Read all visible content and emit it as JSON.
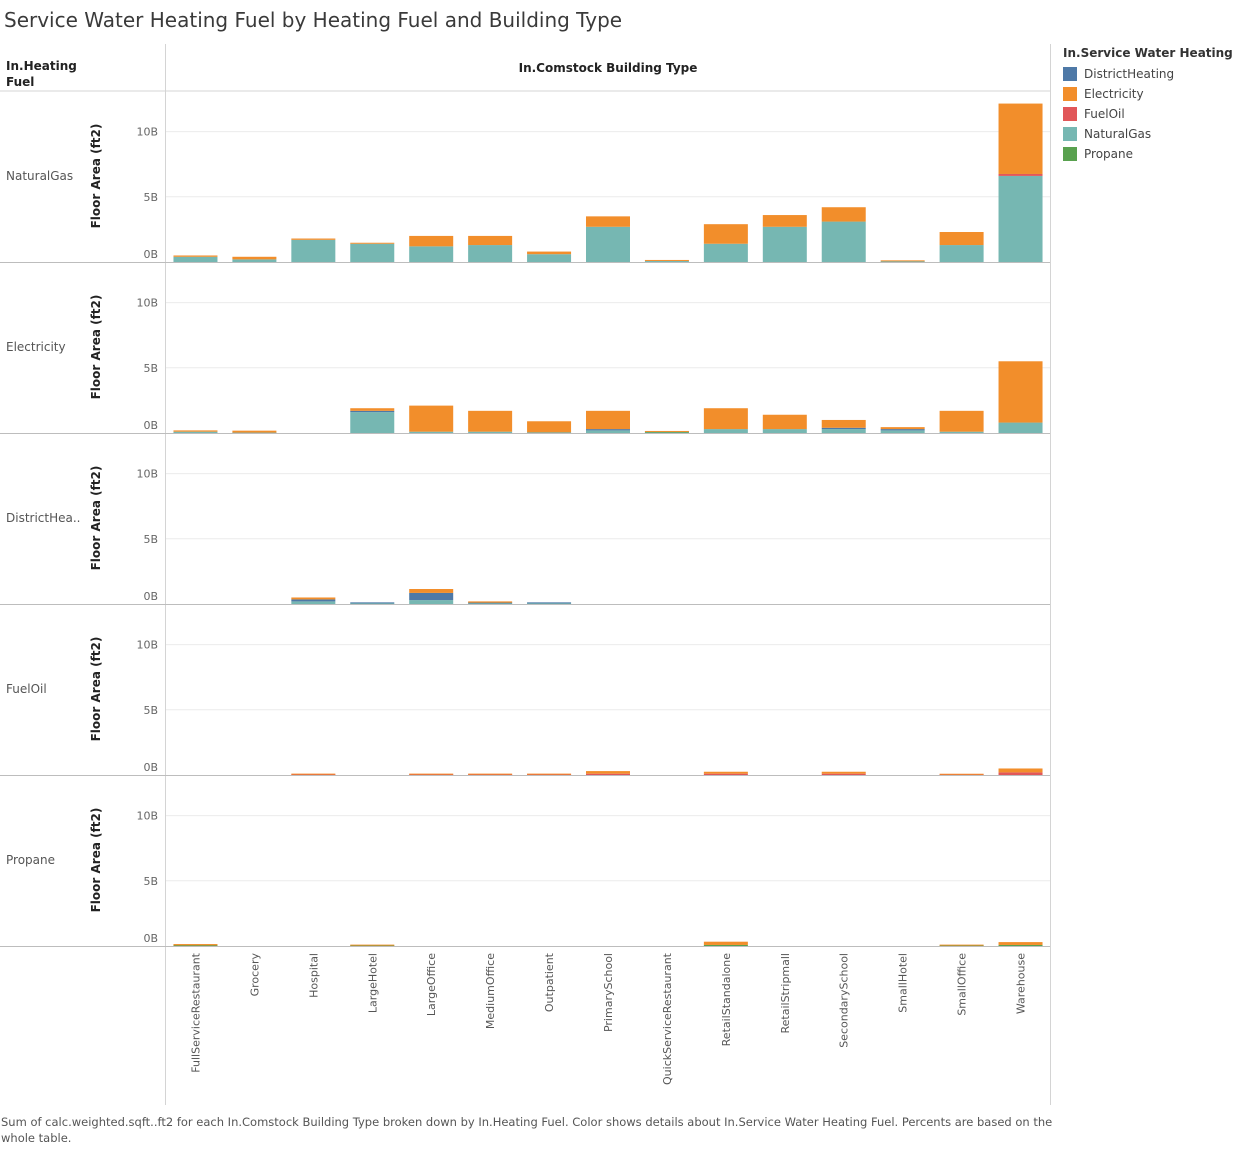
{
  "title": "Service Water Heating Fuel by Heating Fuel and Building Type",
  "row_header": [
    "In.Heating",
    "Fuel"
  ],
  "col_header": "In.Comstock Building Type",
  "caption": "Sum of calc.weighted.sqft..ft2 for each In.Comstock Building Type broken down by In.Heating Fuel.  Color shows details about In.Service Water Heating Fuel. Percents are based on the whole table.",
  "legend": {
    "title": "In.Service Water Heating Fuel",
    "items": [
      {
        "name": "DistrictHeating",
        "color": "#4e79a7"
      },
      {
        "name": "Electricity",
        "color": "#f28e2b"
      },
      {
        "name": "FuelOil",
        "color": "#e15759"
      },
      {
        "name": "NaturalGas",
        "color": "#76b7b2"
      },
      {
        "name": "Propane",
        "color": "#59a14f"
      }
    ]
  },
  "chart_data": {
    "type": "bar",
    "stacked": true,
    "ylabel": "Floor Area (ft2)",
    "ylim": [
      0,
      12.5
    ],
    "yticks": [
      0,
      5,
      10
    ],
    "ytick_labels": [
      "0B",
      "5B",
      "10B"
    ],
    "value_unit": "billion ft2",
    "categories": [
      "FullServiceRestaurant",
      "Grocery",
      "Hospital",
      "LargeHotel",
      "LargeOffice",
      "MediumOffice",
      "Outpatient",
      "PrimarySchool",
      "QuickServiceRestaurant",
      "RetailStandalone",
      "RetailStripmall",
      "SecondarySchool",
      "SmallHotel",
      "SmallOffice",
      "Warehouse"
    ],
    "stack_order": [
      "NaturalGas",
      "FuelOil",
      "Propane",
      "DistrictHeating",
      "Electricity"
    ],
    "panels": [
      {
        "label": "NaturalGas",
        "display_label": "NaturalGas",
        "series": {
          "NaturalGas": [
            0.4,
            0.2,
            1.7,
            1.4,
            1.2,
            1.3,
            0.6,
            2.7,
            0.08,
            1.4,
            2.7,
            3.1,
            0.05,
            1.3,
            6.6
          ],
          "FuelOil": [
            0,
            0,
            0,
            0,
            0,
            0,
            0,
            0,
            0,
            0,
            0,
            0,
            0,
            0,
            0.15
          ],
          "Propane": [
            0,
            0,
            0,
            0,
            0,
            0,
            0,
            0,
            0,
            0,
            0,
            0,
            0,
            0,
            0
          ],
          "DistrictHeating": [
            0,
            0,
            0,
            0,
            0,
            0,
            0,
            0,
            0,
            0,
            0,
            0,
            0,
            0,
            0
          ],
          "Electricity": [
            0.1,
            0.2,
            0.1,
            0.03,
            0.8,
            0.7,
            0.2,
            0.8,
            0.04,
            1.5,
            0.9,
            1.1,
            0.02,
            1.0,
            5.4
          ]
        }
      },
      {
        "label": "Electricity",
        "display_label": "Electricity",
        "series": {
          "NaturalGas": [
            0.1,
            0.03,
            0,
            1.6,
            0.1,
            0.1,
            0.05,
            0.2,
            0.03,
            0.3,
            0.3,
            0.3,
            0.2,
            0.1,
            0.8
          ],
          "FuelOil": [
            0,
            0,
            0,
            0,
            0,
            0,
            0,
            0,
            0,
            0,
            0,
            0,
            0,
            0,
            0
          ],
          "Propane": [
            0,
            0,
            0,
            0,
            0,
            0,
            0,
            0,
            0.05,
            0,
            0,
            0,
            0,
            0,
            0
          ],
          "DistrictHeating": [
            0,
            0,
            0,
            0.1,
            0,
            0,
            0,
            0.1,
            0,
            0,
            0,
            0.1,
            0.1,
            0,
            0
          ],
          "Electricity": [
            0.1,
            0.15,
            0,
            0.2,
            2.0,
            1.6,
            0.85,
            1.4,
            0.02,
            1.6,
            1.1,
            0.6,
            0.15,
            1.6,
            4.7
          ]
        }
      },
      {
        "label": "DistrictHeating",
        "display_label": "DistrictHea..",
        "series": {
          "NaturalGas": [
            0,
            0,
            0.2,
            0.05,
            0.3,
            0.05,
            0.05,
            0,
            0,
            0,
            0,
            0,
            0,
            0,
            0
          ],
          "FuelOil": [
            0,
            0,
            0,
            0,
            0,
            0,
            0,
            0,
            0,
            0,
            0,
            0,
            0,
            0,
            0
          ],
          "Propane": [
            0,
            0,
            0,
            0,
            0,
            0,
            0,
            0,
            0,
            0,
            0,
            0,
            0,
            0,
            0
          ],
          "DistrictHeating": [
            0,
            0,
            0.15,
            0.03,
            0.55,
            0.05,
            0.03,
            0,
            0,
            0,
            0,
            0,
            0,
            0,
            0
          ],
          "Electricity": [
            0,
            0,
            0.15,
            0,
            0.3,
            0.1,
            0,
            0,
            0,
            0,
            0,
            0,
            0,
            0,
            0
          ]
        }
      },
      {
        "label": "FuelOil",
        "display_label": "FuelOil",
        "series": {
          "NaturalGas": [
            0,
            0,
            0,
            0,
            0,
            0,
            0,
            0,
            0,
            0,
            0,
            0,
            0,
            0,
            0
          ],
          "FuelOil": [
            0,
            0,
            0.03,
            0,
            0.03,
            0.03,
            0.03,
            0.1,
            0,
            0.1,
            0,
            0.1,
            0,
            0.02,
            0.2
          ],
          "Propane": [
            0,
            0,
            0,
            0,
            0,
            0,
            0,
            0,
            0,
            0,
            0,
            0,
            0,
            0,
            0
          ],
          "DistrictHeating": [
            0,
            0,
            0,
            0,
            0,
            0,
            0,
            0,
            0,
            0,
            0,
            0,
            0,
            0,
            0
          ],
          "Electricity": [
            0,
            0,
            0.05,
            0,
            0.07,
            0.07,
            0.07,
            0.2,
            0,
            0.15,
            0,
            0.15,
            0,
            0.05,
            0.3
          ]
        }
      },
      {
        "label": "Propane",
        "display_label": "Propane",
        "series": {
          "NaturalGas": [
            0,
            0,
            0,
            0,
            0,
            0,
            0,
            0,
            0,
            0,
            0,
            0,
            0,
            0,
            0
          ],
          "FuelOil": [
            0,
            0,
            0,
            0,
            0,
            0,
            0,
            0,
            0,
            0,
            0,
            0,
            0,
            0,
            0
          ],
          "Propane": [
            0.05,
            0,
            0,
            0.03,
            0,
            0,
            0,
            0,
            0,
            0.08,
            0,
            0,
            0,
            0.03,
            0.08
          ],
          "DistrictHeating": [
            0,
            0,
            0,
            0,
            0,
            0,
            0,
            0,
            0,
            0,
            0,
            0,
            0,
            0,
            0
          ],
          "Electricity": [
            0.1,
            0,
            0,
            0.05,
            0,
            0,
            0,
            0,
            0,
            0.25,
            0,
            0,
            0,
            0.05,
            0.22
          ]
        }
      }
    ]
  }
}
